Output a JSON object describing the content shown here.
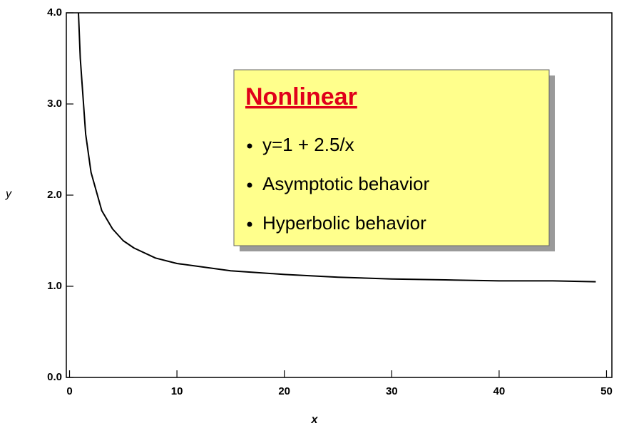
{
  "chart_data": {
    "type": "line",
    "x_label": "x",
    "y_label": "y",
    "x": [
      0.83,
      1,
      1.5,
      2,
      3,
      4,
      5,
      6,
      8,
      10,
      15,
      20,
      25,
      30,
      35,
      40,
      45,
      49
    ],
    "series": [
      {
        "name": "y=1 + 2.5/x",
        "color": "#000000",
        "values": [
          4.0,
          3.5,
          2.67,
          2.25,
          1.83,
          1.63,
          1.5,
          1.42,
          1.31,
          1.25,
          1.17,
          1.13,
          1.1,
          1.08,
          1.07,
          1.06,
          1.06,
          1.05
        ]
      }
    ],
    "xlim": [
      -0.3,
      50.5
    ],
    "ylim": [
      0,
      4
    ],
    "xticks": [
      0,
      10,
      20,
      30,
      40,
      50
    ],
    "yticks": [
      {
        "value": 0,
        "label": "0.0"
      },
      {
        "value": 1,
        "label": "1.0"
      },
      {
        "value": 2,
        "label": "2.0"
      },
      {
        "value": 3,
        "label": "3.0"
      },
      {
        "value": 4,
        "label": "4.0"
      }
    ],
    "annotation": {
      "title": "Nonlinear",
      "bullets": [
        "y=1 + 2.5/x",
        "Asymptotic behavior",
        "Hyperbolic behavior"
      ]
    }
  }
}
